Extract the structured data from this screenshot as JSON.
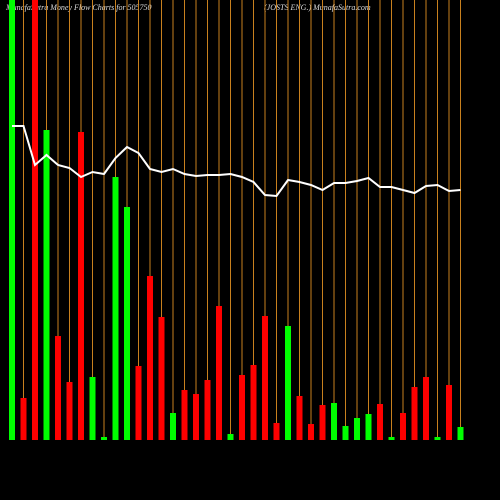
{
  "chart_data": {
    "type": "bar",
    "title": "MunafaSutra  Money Flow  Charts for 505750",
    "subtitle": "(JOSTS ENG.) MunafaSutra.com",
    "guide_color": "#c8801e",
    "line_color": "#ffffff",
    "ylim": [
      0,
      440
    ],
    "values": [
      440,
      42,
      440,
      310,
      104,
      58,
      308,
      63,
      3,
      263,
      233,
      74,
      164,
      123,
      27,
      50,
      46,
      60,
      134,
      6,
      65,
      75,
      124,
      17,
      114,
      44,
      16,
      35,
      37,
      14,
      22,
      26,
      36,
      3,
      27,
      53,
      63,
      3,
      55,
      13
    ],
    "colors": [
      "#00ff00",
      "#ff0000",
      "#ff0000",
      "#00ff00",
      "#ff0000",
      "#ff0000",
      "#ff0000",
      "#00ff00",
      "#00ff00",
      "#00ff00",
      "#00ff00",
      "#ff0000",
      "#ff0000",
      "#ff0000",
      "#00ff00",
      "#ff0000",
      "#ff0000",
      "#ff0000",
      "#ff0000",
      "#00ff00",
      "#ff0000",
      "#ff0000",
      "#ff0000",
      "#ff0000",
      "#00ff00",
      "#ff0000",
      "#ff0000",
      "#ff0000",
      "#00ff00",
      "#00ff00",
      "#00ff00",
      "#00ff00",
      "#ff0000",
      "#00ff00",
      "#ff0000",
      "#ff0000",
      "#ff0000",
      "#00ff00",
      "#ff0000",
      "#00ff00"
    ],
    "price": [
      314,
      314,
      275,
      285,
      275,
      272,
      263,
      268,
      266,
      282,
      293,
      287,
      271,
      268,
      271,
      266,
      264,
      265,
      265,
      266,
      263,
      258,
      245,
      244,
      260,
      258,
      255,
      250,
      257,
      257,
      259,
      262,
      253,
      253,
      250,
      247,
      254,
      255,
      249,
      250
    ]
  }
}
